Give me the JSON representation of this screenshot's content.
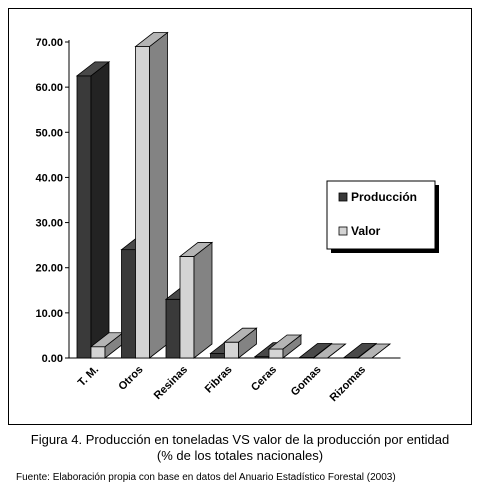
{
  "chart_data": {
    "type": "bar",
    "style": "3d-clustered",
    "categories": [
      "T. M.",
      "Otros",
      "Resinas",
      "Fibras",
      "Ceras",
      "Gomas",
      "Rizomas"
    ],
    "series": [
      {
        "name": "Producción",
        "values": [
          62.5,
          24.0,
          13.0,
          1.0,
          0.3,
          0.1,
          0.1
        ],
        "color": "#3a3a3a"
      },
      {
        "name": "Valor",
        "values": [
          2.5,
          69.0,
          22.5,
          3.5,
          2.0,
          0.0,
          0.0
        ],
        "color": "#d4d4d4"
      }
    ],
    "yticks": [
      "0.00",
      "10.00",
      "20.00",
      "30.00",
      "40.00",
      "50.00",
      "60.00",
      "70.00"
    ],
    "ylim": [
      0,
      70
    ],
    "legend_position": "right",
    "grid": false
  },
  "caption": {
    "line1": "Figura 4. Producción en toneladas VS valor de la producción por entidad",
    "line2": "(% de los totales nacionales)"
  },
  "source": "Fuente: Elaboración propia con base en datos del Anuario Estadístico Forestal (2003)"
}
